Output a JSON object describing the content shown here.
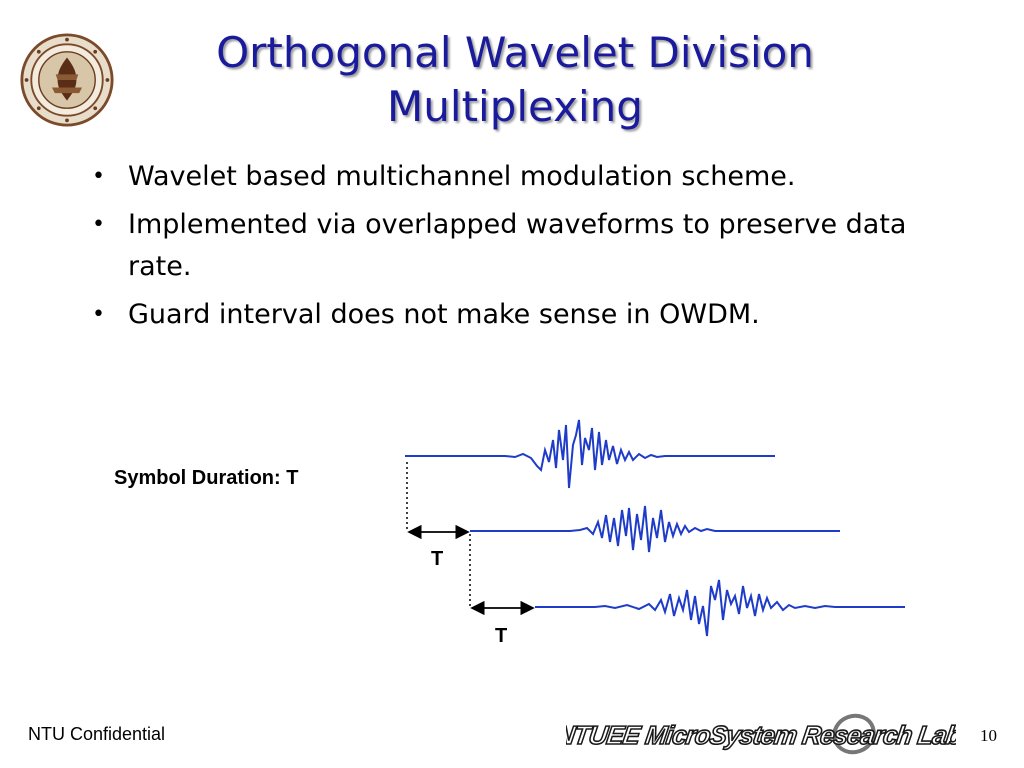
{
  "slide": {
    "title_line1": "Orthogonal Wavelet Division",
    "title_line2": "Multiplexing",
    "bullets": [
      "Wavelet based multichannel modulation scheme.",
      "Implemented via overlapped waveforms to preserve data rate.",
      "Guard interval does not make sense in OWDM."
    ],
    "bullet_glyph": "•"
  },
  "figure": {
    "symbol_label": "Symbol Duration: T",
    "offset_label_1": "T",
    "offset_label_2": "T",
    "waveform_color": "#1f3cc8"
  },
  "footer": {
    "confidential": "NTU Confidential",
    "lab_name": "NTUEE MicroSystem Research Lab.",
    "page_number": "10"
  },
  "logo": {
    "icon": "ntu-seal-icon"
  }
}
